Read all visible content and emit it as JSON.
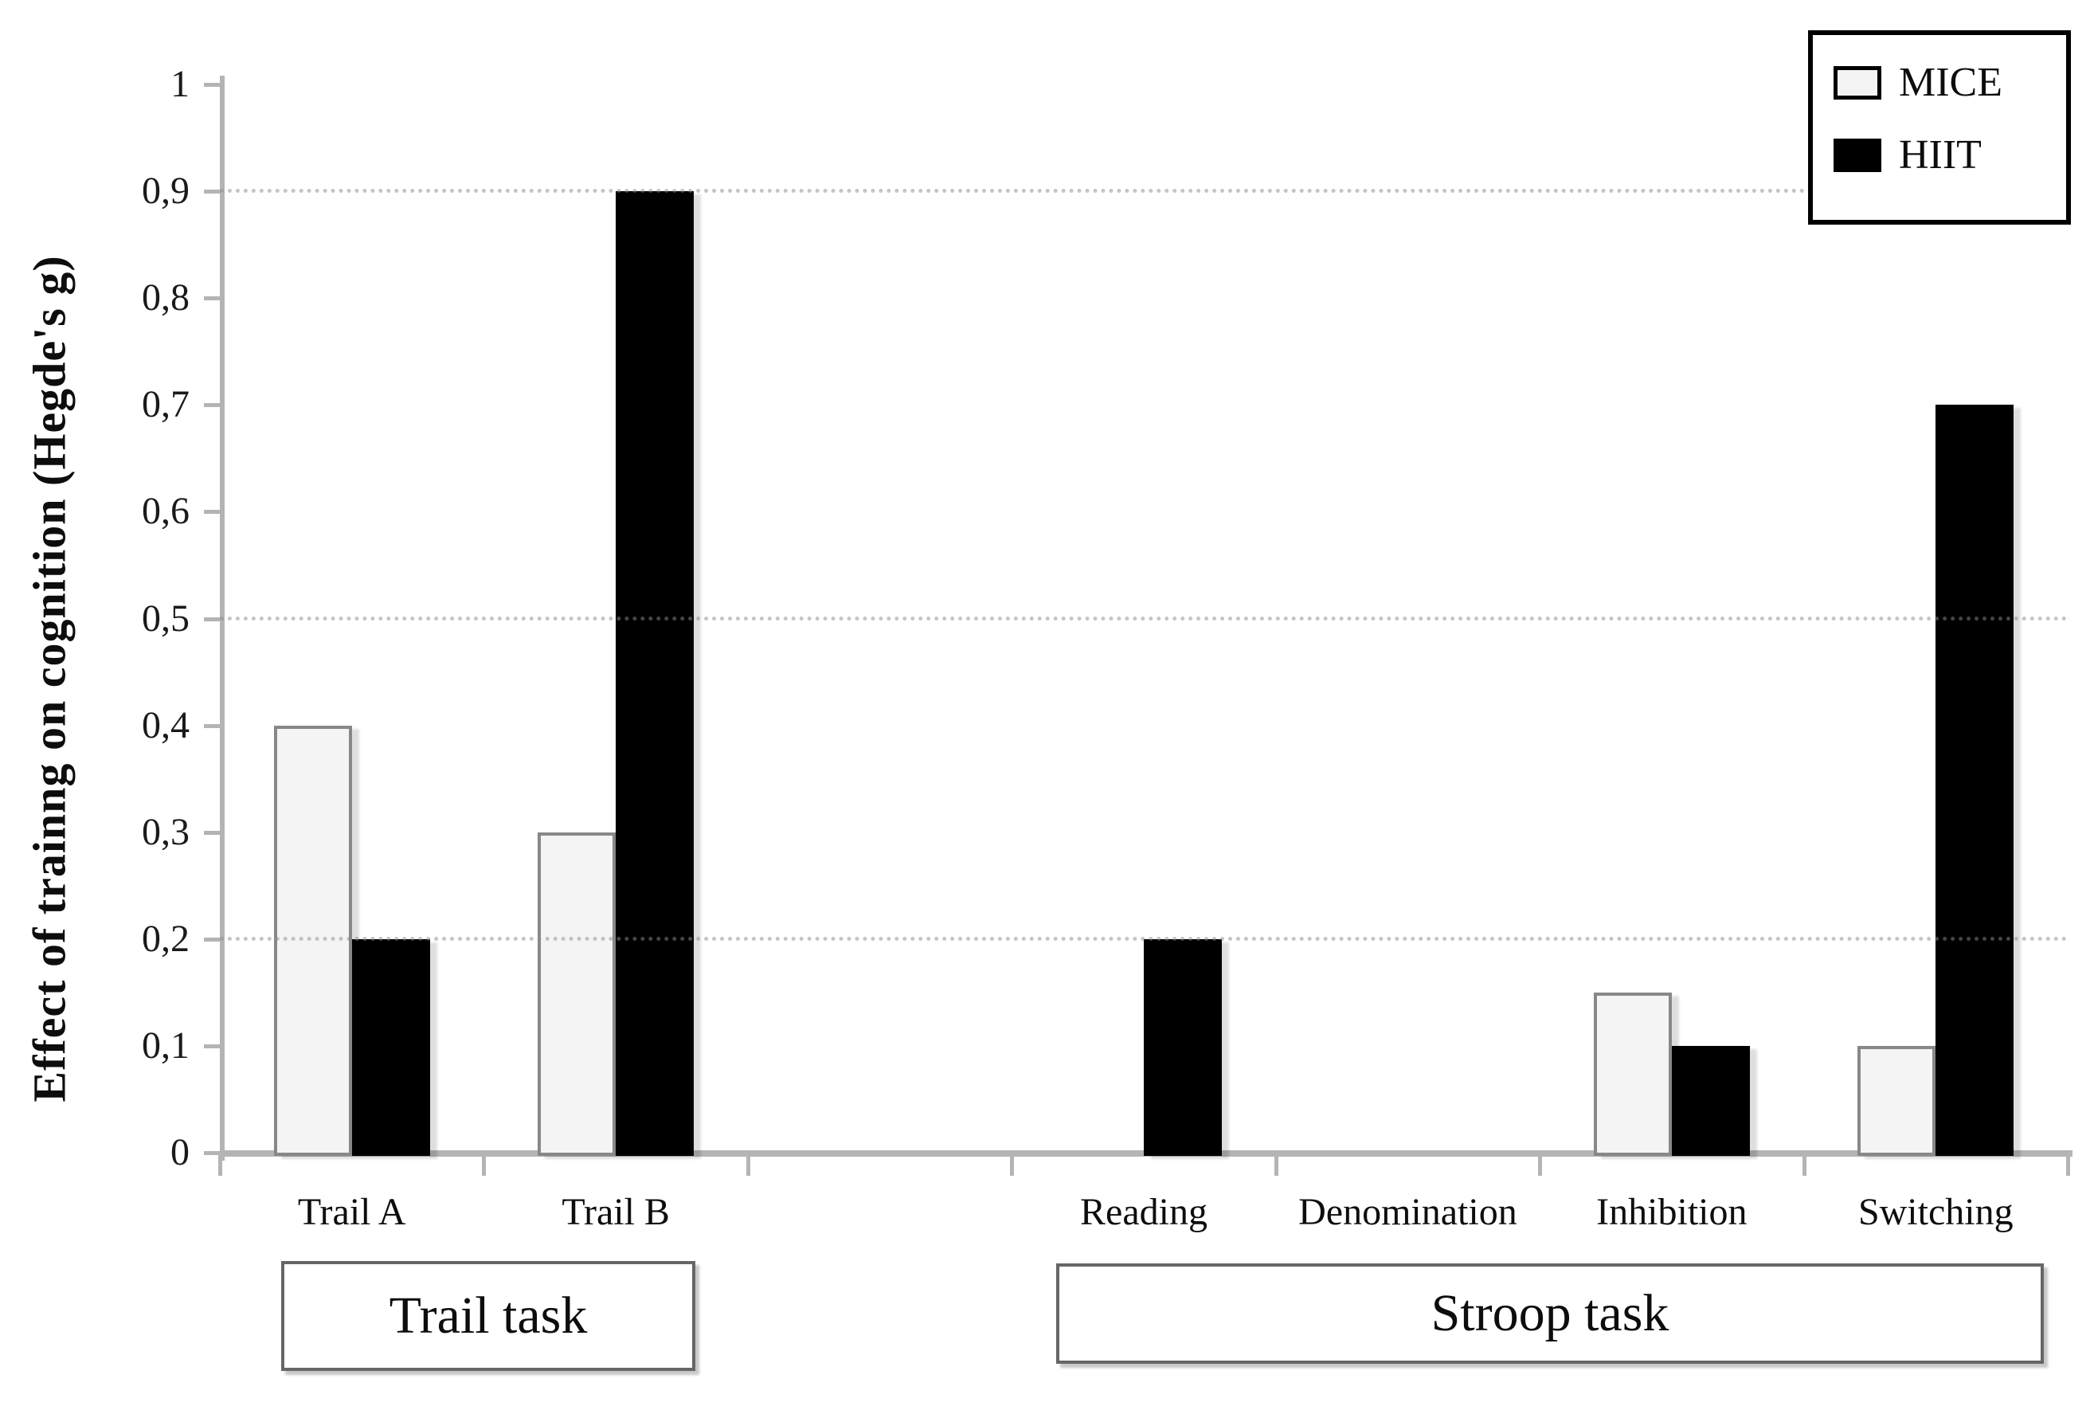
{
  "chart_data": {
    "type": "bar",
    "title": "",
    "ylabel": "Effect of trainng on cognition (Hegde's g)",
    "xlabel": "",
    "ylim": [
      0,
      1
    ],
    "ytick_values": [
      0,
      0.1,
      0.2,
      0.3,
      0.4,
      0.5,
      0.6,
      0.7,
      0.8,
      0.9,
      1
    ],
    "ytick_labels": [
      "0",
      "0,1",
      "0,2",
      "0,3",
      "0,4",
      "0,5",
      "0,6",
      "0,7",
      "0,8",
      "0,9",
      "1"
    ],
    "gridline_values": [
      0.2,
      0.5,
      0.9
    ],
    "grid": "horizontal dotted lines at 0,2 / 0,5 / 0,9",
    "legend_position": "top-right",
    "categories": [
      "Trail A",
      "Trail B",
      "",
      "Reading",
      "Denomination",
      "Inhibition",
      "Switching"
    ],
    "series": [
      {
        "name": "MICE",
        "color": "#f4f4f4",
        "border_color": "#888888",
        "values": [
          0.4,
          0.3,
          null,
          null,
          null,
          0.15,
          0.1
        ]
      },
      {
        "name": "HIIT",
        "color": "#000000",
        "border_color": "#000000",
        "values": [
          0.2,
          0.9,
          null,
          0.2,
          null,
          0.1,
          0.7
        ]
      }
    ],
    "groups": [
      {
        "label": "Trail task",
        "categories": [
          "Trail A",
          "Trail B"
        ]
      },
      {
        "label": "Stroop task",
        "categories": [
          "Reading",
          "Denomination",
          "Inhibition",
          "Switching"
        ]
      }
    ]
  },
  "colors": {
    "background": "#ffffff",
    "axis_line": "#b4b4b4",
    "gridline_dot": "#8c8c8c",
    "tick_text": "#1a1a1a",
    "mice_fill": "#f4f4f4",
    "mice_border": "#888888",
    "hiit_fill": "#000000",
    "legend_border": "#000000",
    "group_box_border": "#666666"
  }
}
